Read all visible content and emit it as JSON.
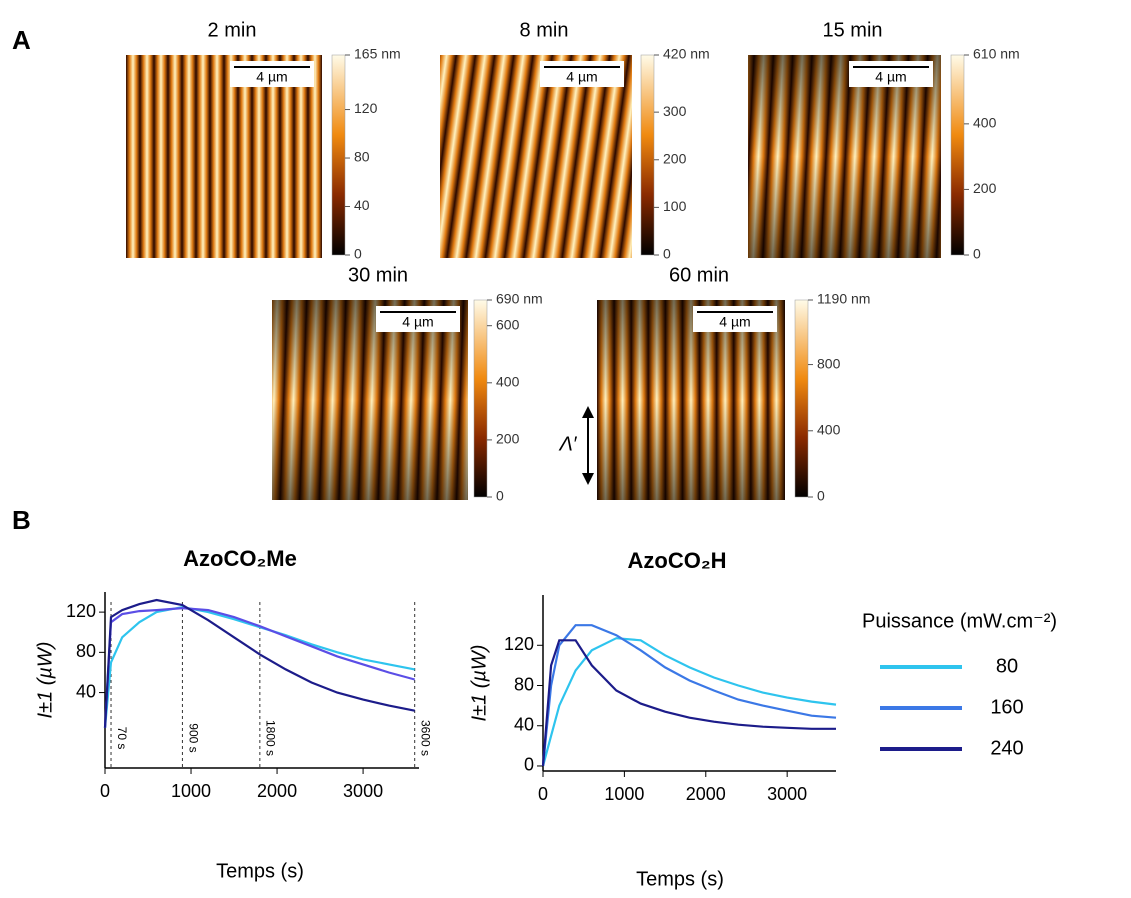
{
  "panel_labels": [
    "A",
    "B"
  ],
  "afm_panels": [
    {
      "title": "2 min",
      "scale_bar": "4 µm",
      "colorbar_lim": [
        0,
        165
      ],
      "colorbar_ticks": [
        0,
        40,
        80,
        120,
        {
          "value": 165,
          "label": "165 nm"
        }
      ]
    },
    {
      "title": "8 min",
      "scale_bar": "4 µm",
      "colorbar_lim": [
        0,
        420
      ],
      "colorbar_ticks": [
        0,
        100,
        200,
        300,
        {
          "value": 420,
          "label": "420 nm"
        }
      ]
    },
    {
      "title": "15 min",
      "scale_bar": "4 µm",
      "colorbar_lim": [
        0,
        610
      ],
      "colorbar_ticks": [
        0,
        200,
        400,
        {
          "value": 610,
          "label": "610 nm"
        }
      ]
    },
    {
      "title": "30 min",
      "scale_bar": "4 µm",
      "colorbar_lim": [
        0,
        690
      ],
      "colorbar_ticks": [
        0,
        200,
        400,
        600,
        {
          "value": 690,
          "label": "690 nm"
        }
      ]
    },
    {
      "title": "60 min",
      "scale_bar": "4 µm",
      "colorbar_lim": [
        0,
        1190
      ],
      "colorbar_ticks": [
        0,
        400,
        800,
        {
          "value": 1190,
          "label": "1190 nm"
        }
      ]
    }
  ],
  "period_label": "Λ′",
  "chart_data": [
    {
      "type": "line",
      "title": "AzoCO₂Me",
      "x_label": "Temps (s)",
      "y_label": "I±1 (µW)",
      "x": [
        0,
        70,
        200,
        400,
        600,
        900,
        1200,
        1500,
        1800,
        2100,
        2400,
        2700,
        3000,
        3300,
        3600
      ],
      "series": [
        {
          "color": "#2ec4ee",
          "values": [
            5,
            70,
            95,
            110,
            120,
            125,
            120,
            113,
            105,
            97,
            88,
            80,
            73,
            68,
            63
          ]
        },
        {
          "color": "#5b4ee6",
          "values": [
            5,
            110,
            118,
            121,
            122,
            124,
            122,
            115,
            106,
            96,
            86,
            76,
            68,
            60,
            53
          ]
        },
        {
          "color": "#1c1c8a",
          "values": [
            5,
            115,
            122,
            128,
            132,
            127,
            112,
            95,
            78,
            63,
            50,
            40,
            33,
            27,
            22
          ]
        }
      ],
      "annotations": [
        {
          "x": 70,
          "label": "70 s"
        },
        {
          "x": 900,
          "label": "900 s"
        },
        {
          "x": 1800,
          "label": "1800 s"
        },
        {
          "x": 3600,
          "label": "3600 s"
        }
      ],
      "xlim": [
        0,
        3650
      ],
      "ylim": [
        -35,
        140
      ],
      "xticks": [
        0,
        1000,
        2000,
        3000
      ],
      "yticks": [
        40,
        80,
        120
      ]
    },
    {
      "type": "line",
      "title": "AzoCO₂H",
      "x_label": "Temps (s)",
      "y_label": "I±1 (µW)",
      "x": [
        0,
        100,
        200,
        400,
        600,
        900,
        1200,
        1500,
        1800,
        2100,
        2400,
        2700,
        3000,
        3300,
        3600
      ],
      "series": [
        {
          "name": "80",
          "color": "#2ec4ee",
          "values": [
            0,
            30,
            60,
            95,
            115,
            127,
            125,
            110,
            98,
            88,
            80,
            73,
            68,
            64,
            61
          ]
        },
        {
          "name": "160",
          "color": "#3b78e6",
          "values": [
            0,
            80,
            120,
            140,
            140,
            130,
            115,
            98,
            85,
            75,
            66,
            60,
            55,
            50,
            48
          ]
        },
        {
          "name": "240",
          "color": "#1c1c8a",
          "values": [
            0,
            100,
            125,
            125,
            100,
            75,
            62,
            54,
            48,
            44,
            41,
            39,
            38,
            37,
            37
          ]
        }
      ],
      "legend": {
        "title": "Puissance (mW.cm⁻²)",
        "position": "right"
      },
      "xlim": [
        0,
        3600
      ],
      "ylim": [
        -5,
        170
      ],
      "xticks": [
        0,
        1000,
        2000,
        3000
      ],
      "yticks": [
        0,
        40,
        80,
        120
      ]
    }
  ]
}
